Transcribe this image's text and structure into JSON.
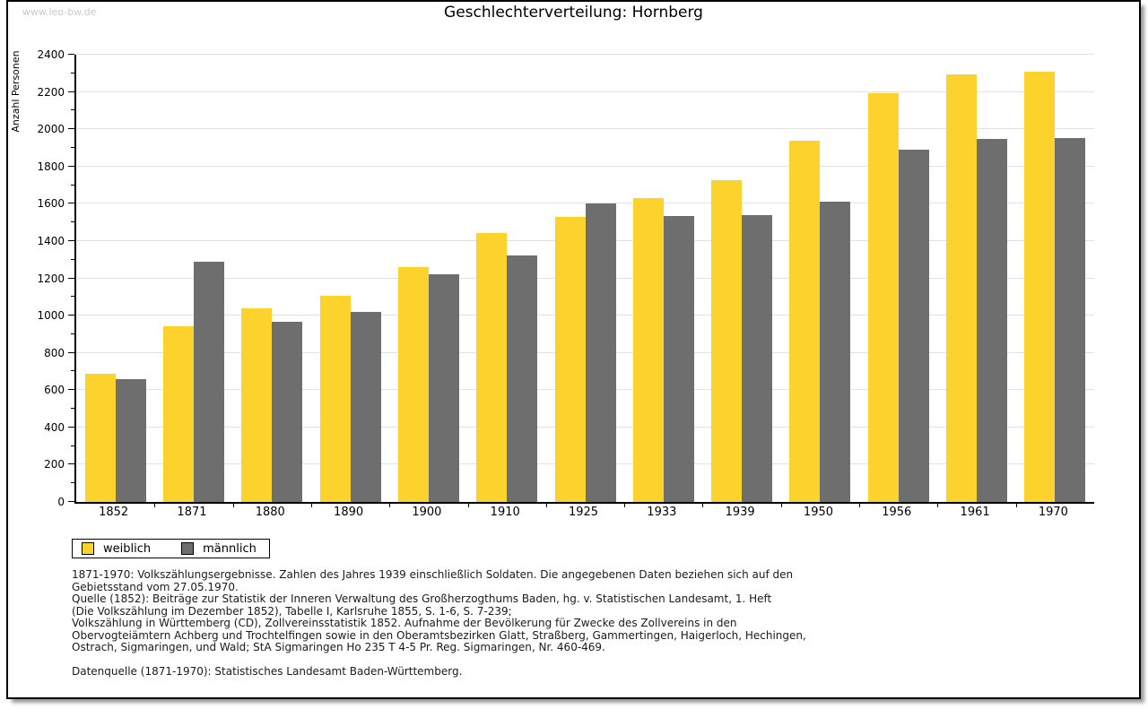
{
  "watermark": "www.leo-bw.de",
  "title": "Geschlechterverteilung: Hornberg",
  "chart_data": {
    "type": "bar",
    "title": "Geschlechterverteilung: Hornberg",
    "xlabel": "",
    "ylabel": "Anzahl Personen",
    "ylim": [
      0,
      2400
    ],
    "ytick_step": 200,
    "yminor_step": 100,
    "grid": true,
    "legend_position": "bottom-left",
    "categories": [
      "1852",
      "1871",
      "1880",
      "1890",
      "1900",
      "1910",
      "1925",
      "1933",
      "1939",
      "1950",
      "1956",
      "1961",
      "1970"
    ],
    "series": [
      {
        "name": "weiblich",
        "color": "#FCD32D",
        "values": [
          690,
          945,
          1040,
          1105,
          1260,
          1445,
          1530,
          1630,
          1725,
          1940,
          2195,
          2295,
          2310
        ]
      },
      {
        "name": "männlich",
        "color": "#6E6E6E",
        "values": [
          660,
          1290,
          965,
          1020,
          1220,
          1325,
          1600,
          1535,
          1540,
          1610,
          1890,
          1950,
          1955
        ]
      }
    ]
  },
  "colors": {
    "bar_weiblich": "#FCD32D",
    "bar_maennlich": "#6E6E6E",
    "gridline": "#E2E2E2",
    "axis": "#000000",
    "watermark": "#C9C9C9",
    "frame_border": "#000000"
  },
  "footnotes": [
    "1871-1970: Volkszählungsergebnisse. Zahlen des Jahres 1939 einschließlich Soldaten. Die angegebenen Daten beziehen sich auf den",
    "Gebietsstand vom 27.05.1970.",
    "Quelle (1852): Beiträge zur Statistik der Inneren Verwaltung des Großherzogthums Baden, hg. v. Statistischen Landesamt, 1. Heft",
    "(Die Volkszählung im Dezember 1852), Tabelle I, Karlsruhe 1855, S. 1-6, S. 7-239;",
    "Volkszählung in Württemberg (CD), Zollvereinsstatistik 1852. Aufnahme der Bevölkerung für Zwecke des Zollvereins in den",
    "Obervogteiämtern Achberg und Trochtelfingen sowie in den Oberamtsbezirken Glatt, Straßberg, Gammertingen, Haigerloch, Hechingen,",
    "Ostrach, Sigmaringen, und Wald; StA Sigmaringen Ho 235 T 4-5 Pr. Reg. Sigmaringen, Nr. 460-469.",
    "",
    "Datenquelle (1871-1970): Statistisches Landesamt Baden-Württemberg."
  ]
}
